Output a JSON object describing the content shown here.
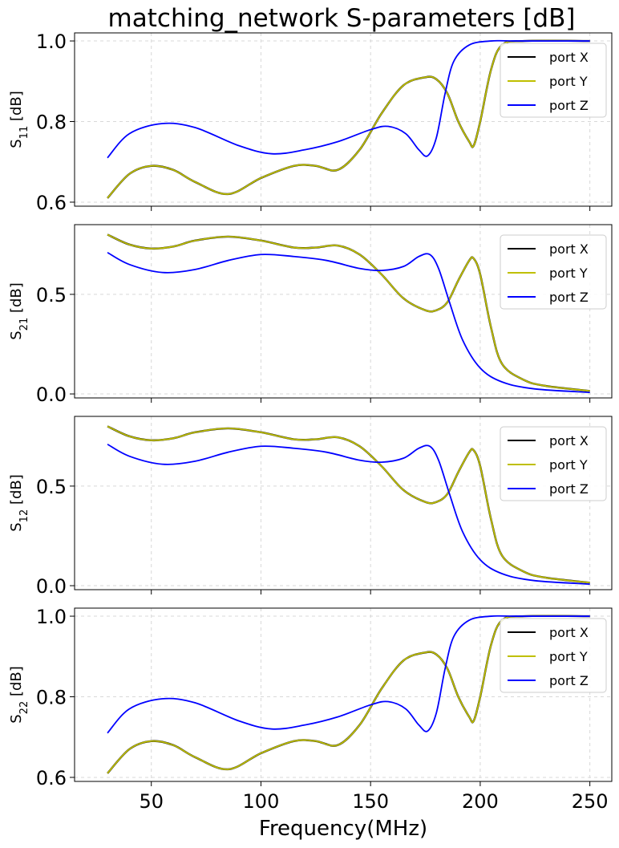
{
  "title": "matching_network S-parameters [dB]",
  "xlabel": "Frequency(MHz)",
  "colors": {
    "port X": "#000000",
    "port Y": "#bfbf00",
    "port Z": "#0000ff"
  },
  "chart_data": [
    {
      "type": "line",
      "ylabel_base": "S",
      "ylabel_sub": "11",
      "ylabel_unit": " [dB]",
      "xlim": [
        15,
        260
      ],
      "ylim": [
        0.59,
        1.02
      ],
      "xticks": [
        50,
        100,
        150,
        200,
        250
      ],
      "yticks": [
        {
          "v": 0.6,
          "l": "0.6"
        },
        {
          "v": 0.8,
          "l": "0.8"
        },
        {
          "v": 1.0,
          "l": "1.0"
        }
      ],
      "grid": true,
      "legend": "top-right",
      "x": [
        30,
        40,
        50,
        60,
        70,
        85,
        100,
        115,
        125,
        135,
        145,
        155,
        165,
        175,
        180,
        185,
        190,
        195,
        197,
        200,
        205,
        210,
        220,
        250
      ],
      "series": [
        {
          "name": "port X",
          "values": [
            0.61,
            0.67,
            0.69,
            0.68,
            0.65,
            0.62,
            0.66,
            0.69,
            0.69,
            0.68,
            0.73,
            0.82,
            0.89,
            0.91,
            0.905,
            0.87,
            0.8,
            0.75,
            0.74,
            0.8,
            0.93,
            0.99,
            1.0,
            1.0
          ]
        },
        {
          "name": "port Y",
          "values": [
            0.61,
            0.67,
            0.69,
            0.68,
            0.65,
            0.62,
            0.66,
            0.69,
            0.69,
            0.68,
            0.73,
            0.82,
            0.89,
            0.91,
            0.905,
            0.87,
            0.8,
            0.75,
            0.74,
            0.8,
            0.93,
            0.99,
            1.0,
            1.0
          ]
        },
        {
          "name": "port Z",
          "x": [
            30,
            40,
            55,
            70,
            90,
            105,
            120,
            135,
            150,
            158,
            166,
            172,
            176,
            180,
            184,
            188,
            195,
            205,
            215,
            250
          ],
          "values": [
            0.71,
            0.77,
            0.795,
            0.785,
            0.74,
            0.72,
            0.73,
            0.75,
            0.78,
            0.788,
            0.77,
            0.73,
            0.715,
            0.76,
            0.87,
            0.95,
            0.99,
            1.0,
            1.0,
            1.0
          ]
        }
      ]
    },
    {
      "type": "line",
      "ylabel_base": "S",
      "ylabel_sub": "21",
      "ylabel_unit": " [dB]",
      "xlim": [
        15,
        260
      ],
      "ylim": [
        -0.02,
        0.85
      ],
      "xticks": [
        50,
        100,
        150,
        200,
        250
      ],
      "yticks": [
        {
          "v": 0.0,
          "l": "0.0"
        },
        {
          "v": 0.5,
          "l": "0.5"
        }
      ],
      "grid": true,
      "legend": "top-right",
      "x": [
        30,
        40,
        50,
        60,
        70,
        85,
        100,
        115,
        125,
        135,
        145,
        155,
        165,
        175,
        180,
        185,
        190,
        195,
        197,
        200,
        205,
        210,
        220,
        230,
        250
      ],
      "series": [
        {
          "name": "port X",
          "values": [
            0.8,
            0.75,
            0.73,
            0.74,
            0.77,
            0.79,
            0.77,
            0.735,
            0.735,
            0.745,
            0.7,
            0.6,
            0.48,
            0.42,
            0.42,
            0.46,
            0.57,
            0.67,
            0.68,
            0.6,
            0.33,
            0.15,
            0.07,
            0.04,
            0.015
          ]
        },
        {
          "name": "port Y",
          "values": [
            0.8,
            0.75,
            0.73,
            0.74,
            0.77,
            0.79,
            0.77,
            0.735,
            0.735,
            0.745,
            0.7,
            0.6,
            0.48,
            0.42,
            0.42,
            0.46,
            0.57,
            0.67,
            0.68,
            0.6,
            0.33,
            0.15,
            0.07,
            0.04,
            0.015
          ]
        },
        {
          "name": "port Z",
          "x": [
            30,
            40,
            55,
            70,
            85,
            100,
            115,
            130,
            145,
            155,
            165,
            172,
            177,
            181,
            186,
            192,
            200,
            210,
            225,
            250
          ],
          "values": [
            0.71,
            0.65,
            0.61,
            0.625,
            0.67,
            0.7,
            0.69,
            0.67,
            0.63,
            0.62,
            0.64,
            0.69,
            0.7,
            0.63,
            0.46,
            0.27,
            0.13,
            0.06,
            0.025,
            0.008
          ]
        }
      ]
    },
    {
      "type": "line",
      "ylabel_base": "S",
      "ylabel_sub": "12",
      "ylabel_unit": " [dB]",
      "xlim": [
        15,
        260
      ],
      "ylim": [
        -0.02,
        0.85
      ],
      "xticks": [
        50,
        100,
        150,
        200,
        250
      ],
      "yticks": [
        {
          "v": 0.0,
          "l": "0.0"
        },
        {
          "v": 0.5,
          "l": "0.5"
        }
      ],
      "grid": true,
      "legend": "top-right",
      "x": [
        30,
        40,
        50,
        60,
        70,
        85,
        100,
        115,
        125,
        135,
        145,
        155,
        165,
        175,
        180,
        185,
        190,
        195,
        197,
        200,
        205,
        210,
        220,
        230,
        250
      ],
      "series": [
        {
          "name": "port X",
          "values": [
            0.8,
            0.75,
            0.73,
            0.74,
            0.77,
            0.79,
            0.77,
            0.735,
            0.735,
            0.745,
            0.7,
            0.6,
            0.48,
            0.42,
            0.42,
            0.46,
            0.57,
            0.67,
            0.68,
            0.6,
            0.33,
            0.15,
            0.07,
            0.04,
            0.015
          ]
        },
        {
          "name": "port Y",
          "values": [
            0.8,
            0.75,
            0.73,
            0.74,
            0.77,
            0.79,
            0.77,
            0.735,
            0.735,
            0.745,
            0.7,
            0.6,
            0.48,
            0.42,
            0.42,
            0.46,
            0.57,
            0.67,
            0.68,
            0.6,
            0.33,
            0.15,
            0.07,
            0.04,
            0.015
          ]
        },
        {
          "name": "port Z",
          "x": [
            30,
            40,
            55,
            70,
            85,
            100,
            115,
            130,
            145,
            155,
            165,
            172,
            177,
            181,
            186,
            192,
            200,
            210,
            225,
            250
          ],
          "values": [
            0.71,
            0.65,
            0.61,
            0.625,
            0.67,
            0.7,
            0.69,
            0.67,
            0.63,
            0.62,
            0.64,
            0.69,
            0.7,
            0.63,
            0.46,
            0.27,
            0.13,
            0.06,
            0.025,
            0.008
          ]
        }
      ]
    },
    {
      "type": "line",
      "ylabel_base": "S",
      "ylabel_sub": "22",
      "ylabel_unit": " [dB]",
      "xlim": [
        15,
        260
      ],
      "ylim": [
        0.59,
        1.02
      ],
      "xticks": [
        50,
        100,
        150,
        200,
        250
      ],
      "yticks": [
        {
          "v": 0.6,
          "l": "0.6"
        },
        {
          "v": 0.8,
          "l": "0.8"
        },
        {
          "v": 1.0,
          "l": "1.0"
        }
      ],
      "grid": true,
      "legend": "top-right",
      "x": [
        30,
        40,
        50,
        60,
        70,
        85,
        100,
        115,
        125,
        135,
        145,
        155,
        165,
        175,
        180,
        185,
        190,
        195,
        197,
        200,
        205,
        210,
        220,
        250
      ],
      "series": [
        {
          "name": "port X",
          "values": [
            0.61,
            0.67,
            0.69,
            0.68,
            0.65,
            0.62,
            0.66,
            0.69,
            0.69,
            0.68,
            0.73,
            0.82,
            0.89,
            0.91,
            0.905,
            0.87,
            0.8,
            0.75,
            0.74,
            0.8,
            0.93,
            0.99,
            1.0,
            1.0
          ]
        },
        {
          "name": "port Y",
          "values": [
            0.61,
            0.67,
            0.69,
            0.68,
            0.65,
            0.62,
            0.66,
            0.69,
            0.69,
            0.68,
            0.73,
            0.82,
            0.89,
            0.91,
            0.905,
            0.87,
            0.8,
            0.75,
            0.74,
            0.8,
            0.93,
            0.99,
            1.0,
            1.0
          ]
        },
        {
          "name": "port Z",
          "x": [
            30,
            40,
            55,
            70,
            90,
            105,
            120,
            135,
            150,
            158,
            166,
            172,
            176,
            180,
            184,
            188,
            195,
            205,
            215,
            250
          ],
          "values": [
            0.71,
            0.77,
            0.795,
            0.785,
            0.74,
            0.72,
            0.73,
            0.75,
            0.78,
            0.788,
            0.77,
            0.73,
            0.715,
            0.76,
            0.87,
            0.95,
            0.99,
            1.0,
            1.0,
            1.0
          ]
        }
      ]
    }
  ]
}
